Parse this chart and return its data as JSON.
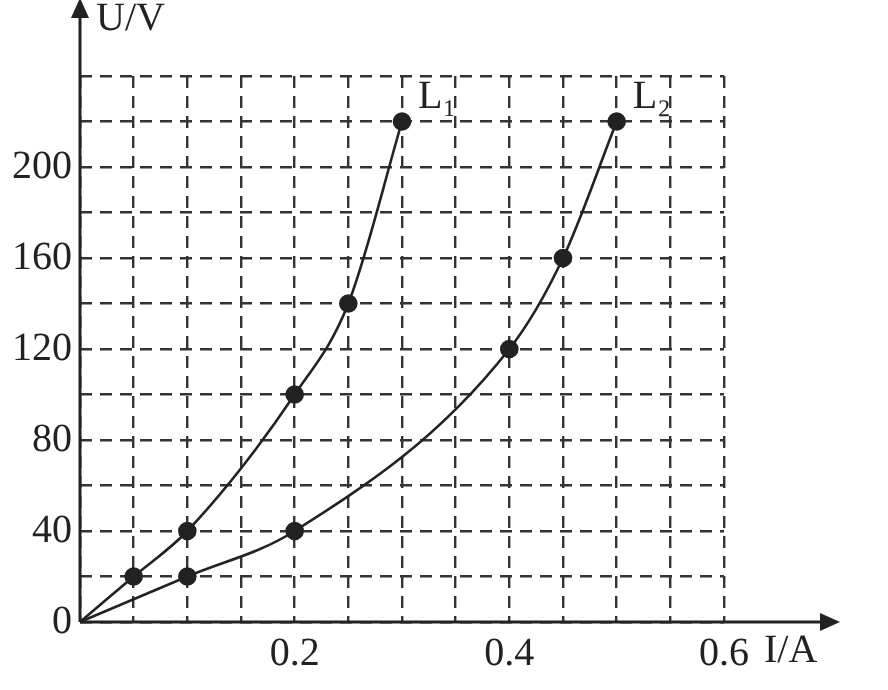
{
  "chart_data": {
    "type": "line",
    "xlabel": "I/A",
    "ylabel": "U/V",
    "xlim": [
      0,
      0.6
    ],
    "ylim": [
      0,
      240
    ],
    "xticks": [
      {
        "value": 0,
        "label": null
      },
      {
        "value": 0.05,
        "label": null
      },
      {
        "value": 0.1,
        "label": null
      },
      {
        "value": 0.15,
        "label": null
      },
      0.2,
      {
        "value": 0.25,
        "label": null
      },
      {
        "value": 0.3,
        "label": null
      },
      {
        "value": 0.35,
        "label": null
      },
      0.4,
      {
        "value": 0.45,
        "label": null
      },
      {
        "value": 0.5,
        "label": null
      },
      {
        "value": 0.55,
        "label": null
      },
      0.6
    ],
    "yticks": [
      0,
      {
        "value": 20,
        "label": null
      },
      40,
      {
        "value": 60,
        "label": null
      },
      80,
      {
        "value": 100,
        "label": null
      },
      120,
      {
        "value": 140,
        "label": null
      },
      160,
      {
        "value": 180,
        "label": null
      },
      200,
      {
        "value": 220,
        "label": null
      },
      {
        "value": 240,
        "label": null
      }
    ],
    "grid": true,
    "legend": false,
    "marker": "circle",
    "line_style": "solid",
    "series": [
      {
        "name": "L₁",
        "color": "#222222",
        "x": [
          0,
          0.05,
          0.1,
          0.2,
          0.25,
          0.3
        ],
        "values": [
          0,
          20,
          40,
          100,
          140,
          220
        ]
      },
      {
        "name": "L₂",
        "color": "#222222",
        "x": [
          0,
          0.1,
          0.2,
          0.4,
          0.45,
          0.5
        ],
        "values": [
          0,
          20,
          40,
          120,
          160,
          220
        ]
      }
    ]
  }
}
